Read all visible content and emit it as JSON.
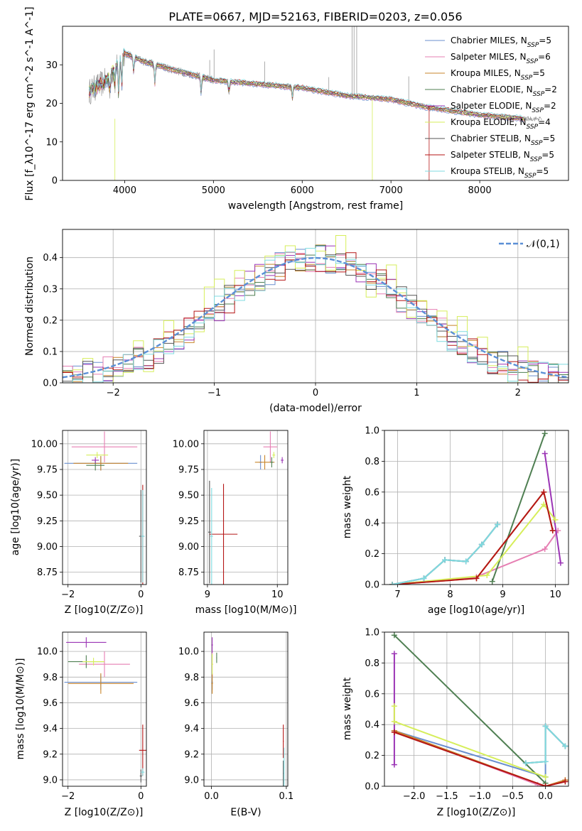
{
  "colors": {
    "Chabrier MILES": "#6a8fcf",
    "Salpeter MILES": "#e67fb3",
    "Kroupa MILES": "#c8852b",
    "Chabrier ELODIE": "#4f7f52",
    "Salpeter ELODIE": "#9b34b5",
    "Kroupa ELODIE": "#d6ee5a",
    "Chabrier STELIB": "#555555",
    "Salpeter STELIB": "#b51616",
    "Kroupa STELIB": "#7fdbe0",
    "normal": "#5b8fd6",
    "grid": "#b0b0b0"
  },
  "chart_data": [
    {
      "id": "spectrum",
      "type": "line",
      "title": "PLATE=0667, MJD=52163, FIBERID=0203, z=0.056",
      "xlabel": "wavelength [Angstrom, rest frame]",
      "ylabel": "Flux [f_λ10^-17 erg cm^-2 s^-1 A^-1]",
      "xlim": [
        3300,
        9000
      ],
      "ylim": [
        0,
        40
      ],
      "xticks": [
        4000,
        5000,
        6000,
        7000,
        8000
      ],
      "yticks": [
        0,
        10,
        20,
        30
      ],
      "grid": false,
      "legend_position": "upper right",
      "legend": [
        {
          "model": "Chabrier MILES",
          "nssp": "5"
        },
        {
          "model": "Salpeter MILES",
          "nssp": "6"
        },
        {
          "model": "Kroupa MILES",
          "nssp": "5"
        },
        {
          "model": "Chabrier ELODIE",
          "nssp": "2"
        },
        {
          "model": "Salpeter ELODIE",
          "nssp": "2"
        },
        {
          "model": "Kroupa ELODIE",
          "nssp": "4"
        },
        {
          "model": "Chabrier STELIB",
          "nssp": "5"
        },
        {
          "model": "Salpeter STELIB",
          "nssp": "5"
        },
        {
          "model": "Kroupa STELIB",
          "nssp": "5"
        }
      ],
      "continuum": {
        "x": [
          3600,
          3800,
          4000,
          4200,
          4500,
          5000,
          5500,
          6000,
          6500,
          7000,
          7400,
          8000,
          8500
        ],
        "y": [
          23,
          26,
          33,
          31,
          29,
          26,
          25,
          24,
          22,
          21,
          19,
          17,
          16
        ]
      }
    },
    {
      "id": "residuals",
      "type": "line",
      "xlabel": "(data-model)/error",
      "ylabel": "Normed distribution",
      "xlim": [
        -2.5,
        2.5
      ],
      "ylim": [
        0,
        0.49
      ],
      "xticks": [
        -2,
        -1,
        0,
        1,
        2
      ],
      "yticks": [
        0.0,
        0.1,
        0.2,
        0.3,
        0.4
      ],
      "grid": true,
      "legend_position": "upper right",
      "series": [
        {
          "name": "𝒩(0,1)",
          "style": "dashed normal curve"
        }
      ],
      "bins": [
        -2.5,
        2.5,
        50
      ]
    },
    {
      "id": "age-vs-Z",
      "type": "scatter",
      "xlabel": "Z [log10(Z/Z⊙)]",
      "ylabel": "age  [log10(age/yr)]",
      "xlim": [
        -2.15,
        0.15
      ],
      "ylim": [
        8.63,
        10.13
      ],
      "xticks": [
        -2,
        0
      ],
      "yticks": [
        8.75,
        9.0,
        9.25,
        9.5,
        9.75,
        10.0
      ],
      "grid": true,
      "points": [
        {
          "model": "Chabrier MILES",
          "x": -1.1,
          "y": 9.81,
          "xe": 1.0,
          "ye": 0.07
        },
        {
          "model": "Salpeter MILES",
          "x": -1.0,
          "y": 9.97,
          "xe": 0.9,
          "ye": 0.15
        },
        {
          "model": "Kroupa MILES",
          "x": -1.1,
          "y": 9.81,
          "xe": 0.75,
          "ye": 0.07
        },
        {
          "model": "Chabrier ELODIE",
          "x": -1.25,
          "y": 9.79,
          "xe": 0.25,
          "ye": 0.05
        },
        {
          "model": "Salpeter ELODIE",
          "x": -1.25,
          "y": 9.84,
          "xe": 0.1,
          "ye": 0.03
        },
        {
          "model": "Kroupa ELODIE",
          "x": -1.2,
          "y": 9.89,
          "xe": 0.3,
          "ye": 0.03
        },
        {
          "model": "Chabrier STELIB",
          "x": 0.0,
          "y": 9.1,
          "xe": 0.05,
          "ye": 0.45
        },
        {
          "model": "Salpeter STELIB",
          "x": 0.05,
          "y": 9.1,
          "xe": 0.05,
          "ye": 0.5
        },
        {
          "model": "Kroupa STELIB",
          "x": 0.05,
          "y": 9.1,
          "xe": 0.05,
          "ye": 0.45
        }
      ]
    },
    {
      "id": "age-vs-mass",
      "type": "scatter",
      "xlabel": "mass [log10(M/M⊙)]",
      "ylabel": "",
      "xlim": [
        8.95,
        10.15
      ],
      "ylim": [
        8.63,
        10.13
      ],
      "xticks": [
        9,
        10
      ],
      "yticks": [
        8.75,
        9.0,
        9.25,
        9.5,
        9.75,
        10.0
      ],
      "grid": true,
      "points": [
        {
          "model": "Chabrier MILES",
          "x": 9.76,
          "y": 9.82,
          "xe": 0.02,
          "ye": 0.07
        },
        {
          "model": "Salpeter MILES",
          "x": 9.9,
          "y": 9.97,
          "xe": 0.1,
          "ye": 0.15
        },
        {
          "model": "Kroupa MILES",
          "x": 9.82,
          "y": 9.82,
          "xe": 0.14,
          "ye": 0.07
        },
        {
          "model": "Chabrier ELODIE",
          "x": 9.92,
          "y": 9.82,
          "xe": 0.02,
          "ye": 0.05
        },
        {
          "model": "Salpeter ELODIE",
          "x": 10.07,
          "y": 9.84,
          "xe": 0.02,
          "ye": 0.03
        },
        {
          "model": "Kroupa ELODIE",
          "x": 9.95,
          "y": 9.89,
          "xe": 0.02,
          "ye": 0.03
        },
        {
          "model": "Chabrier STELIB",
          "x": 9.03,
          "y": 9.14,
          "xe": 0.02,
          "ye": 0.5
        },
        {
          "model": "Salpeter STELIB",
          "x": 9.23,
          "y": 9.12,
          "xe": 0.2,
          "ye": 0.49
        },
        {
          "model": "Kroupa STELIB",
          "x": 9.06,
          "y": 9.1,
          "xe": 0.02,
          "ye": 0.47
        }
      ]
    },
    {
      "id": "mass-weight-vs-age",
      "type": "line",
      "xlabel": "age  [log10(age/yr)]",
      "ylabel": "mass weight",
      "xlim": [
        6.75,
        10.25
      ],
      "ylim": [
        0,
        1
      ],
      "xticks": [
        7,
        8,
        9,
        10
      ],
      "yticks": [
        0.0,
        0.2,
        0.4,
        0.6,
        0.8,
        1.0
      ],
      "grid": true,
      "series": [
        {
          "name": "Chabrier MILES",
          "x": [
            6.9,
            7.5,
            7.9,
            8.3,
            8.6,
            8.9
          ],
          "y": [
            0.0,
            0.04,
            0.16,
            0.15,
            0.26,
            0.39
          ]
        },
        {
          "name": "Salpeter MILES",
          "x": [
            6.9,
            8.5,
            9.8,
            10.05
          ],
          "y": [
            0.0,
            0.05,
            0.23,
            0.35
          ]
        },
        {
          "name": "Kroupa MILES",
          "x": [
            6.9,
            8.5,
            9.78,
            9.95
          ],
          "y": [
            0.0,
            0.04,
            0.6,
            0.35
          ]
        },
        {
          "name": "Chabrier ELODIE",
          "x": [
            8.8,
            9.8
          ],
          "y": [
            0.02,
            0.98
          ]
        },
        {
          "name": "Salpeter ELODIE",
          "x": [
            9.8,
            10.1
          ],
          "y": [
            0.85,
            0.14
          ]
        },
        {
          "name": "Kroupa ELODIE",
          "x": [
            6.9,
            8.7,
            9.78,
            10.0
          ],
          "y": [
            0.0,
            0.06,
            0.52,
            0.42
          ]
        },
        {
          "name": "Chabrier STELIB",
          "x": [
            6.9,
            7.5,
            7.9,
            8.3,
            8.6,
            8.9
          ],
          "y": [
            0.0,
            0.04,
            0.16,
            0.15,
            0.26,
            0.39
          ]
        },
        {
          "name": "Salpeter STELIB",
          "x": [
            6.9,
            8.5,
            9.78,
            9.95
          ],
          "y": [
            0.0,
            0.04,
            0.6,
            0.35
          ]
        },
        {
          "name": "Kroupa STELIB",
          "x": [
            6.9,
            7.5,
            7.9,
            8.3,
            8.6,
            8.9
          ],
          "y": [
            0.0,
            0.04,
            0.16,
            0.15,
            0.26,
            0.39
          ]
        }
      ]
    },
    {
      "id": "mass-vs-Z",
      "type": "scatter",
      "xlabel": "Z [log10(Z/Z⊙)]",
      "ylabel": "mass [log10(M/M⊙)]",
      "xlim": [
        -2.15,
        0.15
      ],
      "ylim": [
        8.95,
        10.15
      ],
      "xticks": [
        -2,
        0
      ],
      "yticks": [
        9.0,
        9.2,
        9.4,
        9.6,
        9.8,
        10.0
      ],
      "grid": true,
      "points": [
        {
          "model": "Chabrier MILES",
          "x": -1.1,
          "y": 9.76,
          "xe": 1.0,
          "ye": 0.06
        },
        {
          "model": "Salpeter MILES",
          "x": -1.0,
          "y": 9.9,
          "xe": 0.7,
          "ye": 0.1
        },
        {
          "model": "Kroupa MILES",
          "x": -1.1,
          "y": 9.75,
          "xe": 0.9,
          "ye": 0.08
        },
        {
          "model": "Chabrier ELODIE",
          "x": -1.5,
          "y": 9.92,
          "xe": 0.5,
          "ye": 0.05
        },
        {
          "model": "Salpeter ELODIE",
          "x": -1.5,
          "y": 10.07,
          "xe": 0.55,
          "ye": 0.04
        },
        {
          "model": "Kroupa ELODIE",
          "x": -1.3,
          "y": 9.92,
          "xe": 0.3,
          "ye": 0.03
        },
        {
          "model": "Chabrier STELIB",
          "x": 0.0,
          "y": 9.03,
          "xe": 0.03,
          "ye": 0.05
        },
        {
          "model": "Salpeter STELIB",
          "x": 0.05,
          "y": 9.23,
          "xe": 0.1,
          "ye": 0.2
        },
        {
          "model": "Kroupa STELIB",
          "x": 0.05,
          "y": 9.06,
          "xe": 0.05,
          "ye": 0.03
        }
      ]
    },
    {
      "id": "mass-vs-EBV",
      "type": "scatter",
      "xlabel": "E(B-V)",
      "ylabel": "",
      "xlim": [
        -0.01,
        0.102
      ],
      "ylim": [
        8.95,
        10.15
      ],
      "xticks": [
        0.0,
        0.1
      ],
      "yticks": [
        9.0,
        9.2,
        9.4,
        9.6,
        9.8,
        10.0
      ],
      "grid": true,
      "points": [
        {
          "model": "Chabrier MILES",
          "x": 0.001,
          "y": 9.76,
          "xe": 0.001,
          "ye": 0.06
        },
        {
          "model": "Salpeter MILES",
          "x": 0.001,
          "y": 9.9,
          "xe": 0.001,
          "ye": 0.1
        },
        {
          "model": "Kroupa MILES",
          "x": 0.001,
          "y": 9.75,
          "xe": 0.001,
          "ye": 0.08
        },
        {
          "model": "Chabrier ELODIE",
          "x": 0.007,
          "y": 9.95,
          "xe": 0.0005,
          "ye": 0.04
        },
        {
          "model": "Salpeter ELODIE",
          "x": 0.001,
          "y": 10.05,
          "xe": 0.001,
          "ye": 0.06
        },
        {
          "model": "Kroupa ELODIE",
          "x": 0.001,
          "y": 9.9,
          "xe": 0.001,
          "ye": 0.08
        },
        {
          "model": "Chabrier STELIB",
          "x": 0.096,
          "y": 9.05,
          "xe": 0.0005,
          "ye": 0.1
        },
        {
          "model": "Salpeter STELIB",
          "x": 0.096,
          "y": 9.3,
          "xe": 0.0005,
          "ye": 0.13
        },
        {
          "model": "Kroupa STELIB",
          "x": 0.097,
          "y": 9.1,
          "xe": 0.0005,
          "ye": 0.15
        }
      ]
    },
    {
      "id": "mass-weight-vs-Z",
      "type": "line",
      "xlabel": "Z [log10(Z/Z⊙)]",
      "ylabel": "mass weight",
      "xlim": [
        -2.45,
        0.35
      ],
      "ylim": [
        0,
        1
      ],
      "xticks": [
        -2.0,
        -1.5,
        -1.0,
        -0.5,
        0.0
      ],
      "yticks": [
        0.0,
        0.2,
        0.4,
        0.6,
        0.8,
        1.0
      ],
      "grid": true,
      "series": [
        {
          "name": "Chabrier MILES",
          "x": [
            -2.3,
            0.0,
            0.0,
            0.3
          ],
          "y": [
            0.36,
            0.06,
            0.39,
            0.26
          ]
        },
        {
          "name": "Salpeter MILES",
          "x": [
            -2.3,
            -0.12,
            0.0,
            0.3
          ],
          "y": [
            0.36,
            0.01,
            0.0,
            0.04
          ]
        },
        {
          "name": "Kroupa MILES",
          "x": [
            -2.3,
            0.0,
            0.3
          ],
          "y": [
            0.36,
            0.0,
            0.04
          ]
        },
        {
          "name": "Chabrier ELODIE",
          "x": [
            -2.3,
            0.0
          ],
          "y": [
            0.98,
            0.02
          ]
        },
        {
          "name": "Salpeter ELODIE",
          "x": [
            -2.3,
            -2.3
          ],
          "y": [
            0.14,
            0.86
          ]
        },
        {
          "name": "Kroupa ELODIE",
          "x": [
            -2.3,
            -2.3,
            0.0
          ],
          "y": [
            0.52,
            0.42,
            0.06
          ]
        },
        {
          "name": "Chabrier STELIB",
          "x": [
            -0.3,
            0.0,
            0.0,
            0.3
          ],
          "y": [
            0.15,
            0.16,
            0.39,
            0.26
          ]
        },
        {
          "name": "Salpeter STELIB",
          "x": [
            -2.3,
            0.0,
            0.3
          ],
          "y": [
            0.35,
            0.0,
            0.03
          ]
        },
        {
          "name": "Kroupa STELIB",
          "x": [
            -0.3,
            0.0,
            0.0,
            0.3
          ],
          "y": [
            0.15,
            0.16,
            0.39,
            0.26
          ]
        }
      ]
    }
  ]
}
